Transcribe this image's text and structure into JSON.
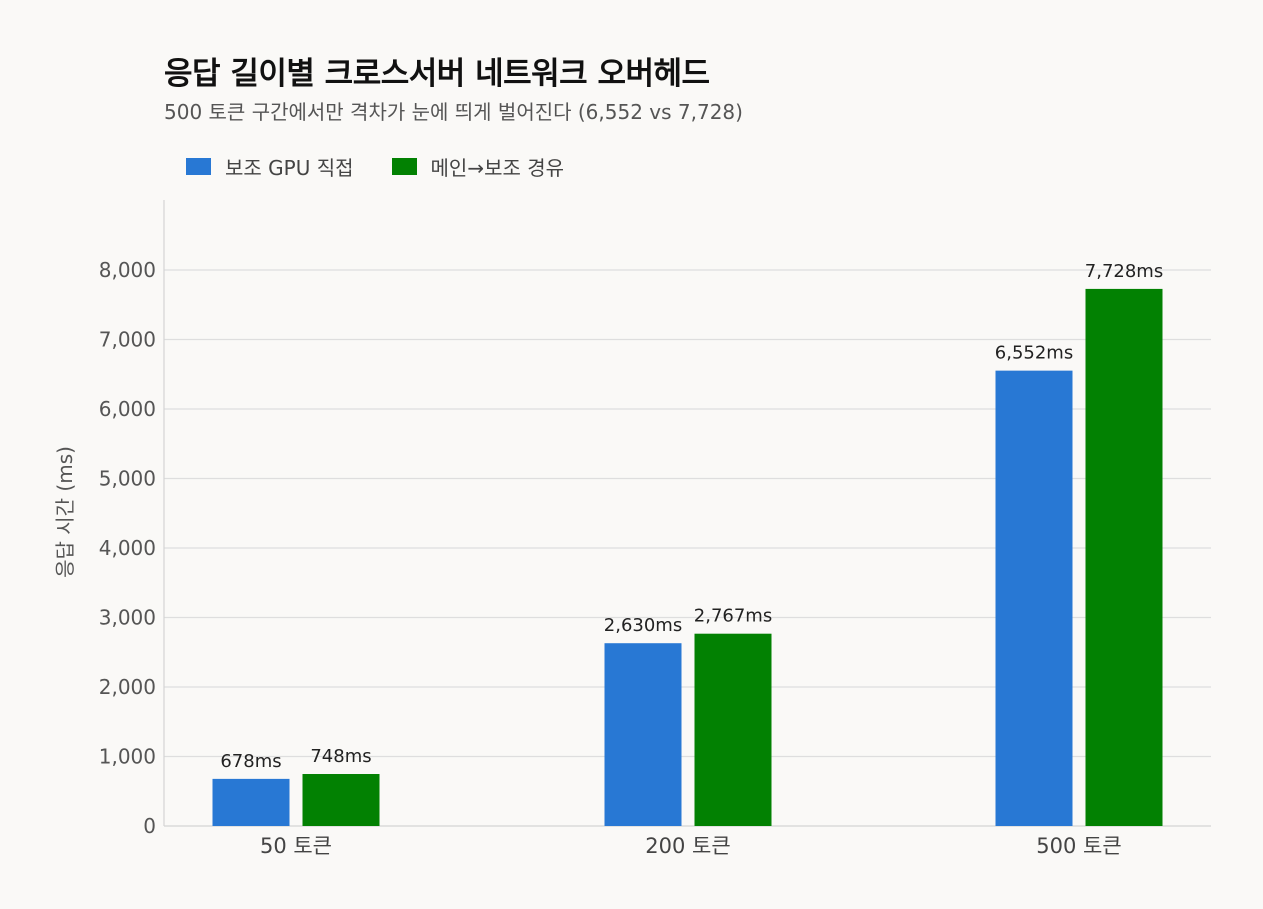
{
  "chart_data": {
    "type": "bar",
    "title": "응답 길이별 크로스서버 네트워크 오버헤드",
    "subtitle": "500 토큰 구간에서만 격차가 눈에 띄게 벌어진다 (6,552 vs 7,728)",
    "ylabel": "응답 시간 (ms)",
    "xlabel": "",
    "categories": [
      "50 토큰",
      "200 토큰",
      "500 토큰"
    ],
    "series": [
      {
        "name": "보조 GPU 직접",
        "color": "#2878d4",
        "values": [
          678,
          2630,
          6552
        ],
        "labels": [
          "678ms",
          "2,630ms",
          "6,552ms"
        ]
      },
      {
        "name": "메인→보조 경유",
        "color": "#028102",
        "values": [
          748,
          2767,
          7728
        ],
        "labels": [
          "748ms",
          "2,767ms",
          "7,728ms"
        ]
      }
    ],
    "ylim": [
      0,
      8900
    ],
    "yticks": [
      0,
      1000,
      2000,
      3000,
      4000,
      5000,
      6000,
      7000,
      8000
    ],
    "ytick_labels": [
      "0",
      "1,000",
      "2,000",
      "3,000",
      "4,000",
      "5,000",
      "6,000",
      "7,000",
      "8,000"
    ],
    "grid": true,
    "legend_position": "top-left"
  }
}
